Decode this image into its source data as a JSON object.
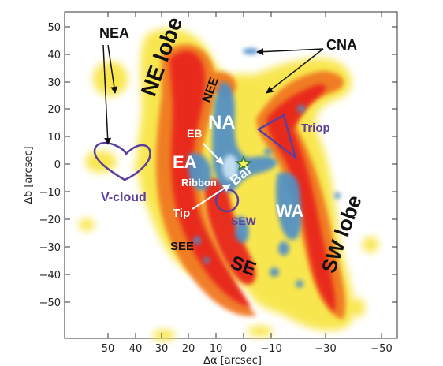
{
  "axes": {
    "x_title": "Δα [arcsec]",
    "y_title": "Δδ [arcsec]",
    "x_ticks": [
      "50",
      "40",
      "30",
      "20",
      "10",
      "0",
      "−10",
      "−30",
      "−50"
    ],
    "y_ticks": [
      "50",
      "40",
      "30",
      "20",
      "10",
      "0",
      "−10",
      "−20",
      "−30",
      "−40",
      "−50"
    ]
  },
  "labels": {
    "nea": "NEA",
    "ne_lobe": "NE lobe",
    "nee": "NEE",
    "cna": "CNA",
    "na": "NA",
    "eb": "EB",
    "triop": "Triop",
    "ea": "EA",
    "bar": "Bar",
    "ribbon": "Ribbon",
    "v_cloud": "V-cloud",
    "tip": "Tip",
    "sew": "SEW",
    "wa": "WA",
    "see": "SEE",
    "se": "SE",
    "sw_lobe": "SW lobe"
  },
  "colors": {
    "outline_purple": "#5b3f9e",
    "emission_red": "#e8281c",
    "emission_orange": "#f07820",
    "emission_yellow": "#f8e43c",
    "absorption_blue": "#4f8fc8",
    "star_marker": "#2f7a2f"
  }
}
